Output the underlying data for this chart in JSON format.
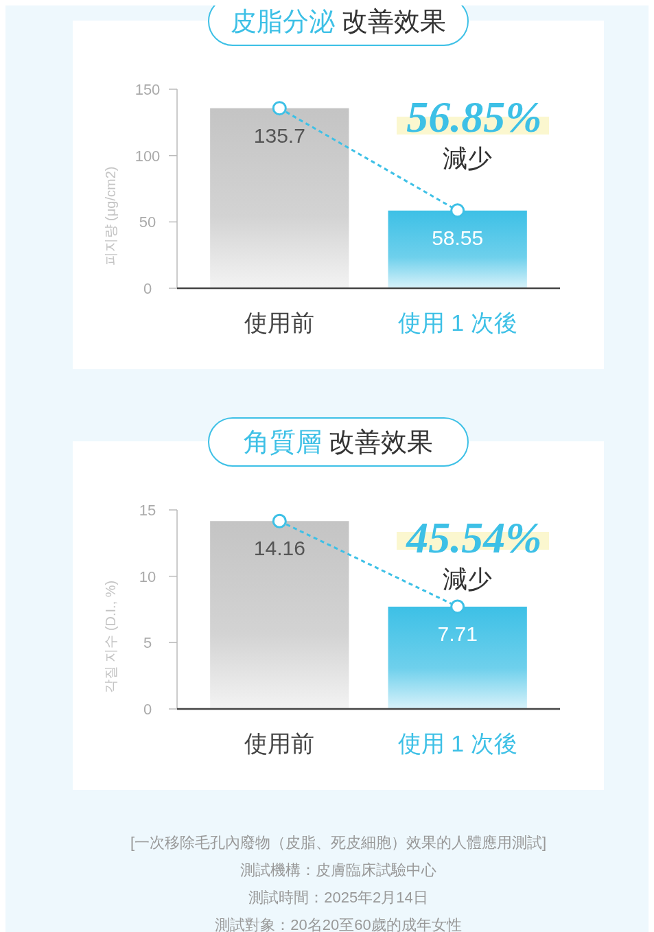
{
  "chart_data": [
    {
      "type": "bar",
      "title": "皮脂分泌 改善效果",
      "ylabel": "피지량 (μg/cm2)",
      "categories": [
        "使用前",
        "使用 1 次後"
      ],
      "ylim": [
        0,
        150
      ],
      "yticks": [
        0,
        50,
        100,
        150
      ],
      "line_style": "dashed",
      "marker": "circle",
      "series": [
        {
          "colors": [
            "#c4c4c4",
            "#3dc0e6"
          ],
          "values": [
            135.7,
            58.55
          ],
          "value_labels": [
            "135.7",
            "58.55"
          ]
        },
        {
          "type": "line",
          "color": "#3dc0e6",
          "values": [
            135.7,
            58.55
          ]
        }
      ],
      "annotations": [
        "56.85%",
        "減少"
      ]
    },
    {
      "type": "bar",
      "title": "角質層 改善效果",
      "ylabel": "각질 지수 (D.I., %)",
      "categories": [
        "使用前",
        "使用 1 次後"
      ],
      "ylim": [
        0,
        15
      ],
      "yticks": [
        0,
        5,
        10,
        15
      ],
      "line_style": "dashed",
      "marker": "circle",
      "series": [
        {
          "colors": [
            "#c4c4c4",
            "#3dc0e6"
          ],
          "values": [
            14.16,
            7.71
          ],
          "value_labels": [
            "14.16",
            "7.71"
          ]
        },
        {
          "type": "line",
          "color": "#3dc0e6",
          "values": [
            14.16,
            7.71
          ]
        }
      ],
      "annotations": [
        "45.54%",
        "減少",
        "[一次移除毛孔內廢物（皮脂、死皮細胞）效果的人體應用測試]",
        "測試機構：皮膚臨床試驗中心",
        "測試時間：2025年2月14日",
        "測試對象：20名20至60歲的成年女性"
      ]
    }
  ]
}
